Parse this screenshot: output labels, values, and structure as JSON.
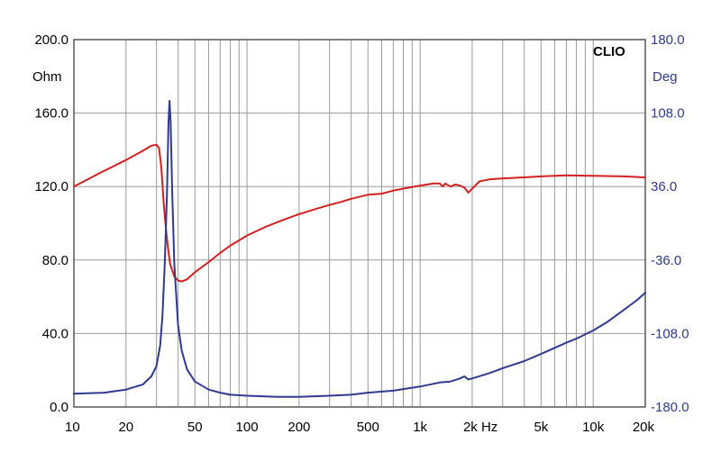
{
  "chart_data": {
    "type": "line",
    "brand": "CLIO",
    "colors": {
      "impedance": "#d42020",
      "phase": "#2f3a8f",
      "grid": "#9a9a9a",
      "frame": "#555555",
      "left_axis_text": "#000000",
      "right_axis_text": "#2f3a8f"
    },
    "grid": true,
    "x_axis": {
      "scale": "log",
      "range": [
        10,
        20000
      ],
      "ticks": [
        {
          "value": 10,
          "label": "10"
        },
        {
          "value": 20,
          "label": "20"
        },
        {
          "value": 50,
          "label": "50"
        },
        {
          "value": 100,
          "label": "100"
        },
        {
          "value": 200,
          "label": "200"
        },
        {
          "value": 500,
          "label": "500"
        },
        {
          "value": 1000,
          "label": "1k"
        },
        {
          "value": 2000,
          "label": "2k Hz"
        },
        {
          "value": 5000,
          "label": "5k"
        },
        {
          "value": 10000,
          "label": "10k"
        },
        {
          "value": 20000,
          "label": "20k"
        }
      ]
    },
    "y_left": {
      "unit": "Ohm",
      "range": [
        0,
        200
      ],
      "ticks": [
        {
          "value": 0,
          "label": "0.0"
        },
        {
          "value": 40,
          "label": "40.0"
        },
        {
          "value": 80,
          "label": "80.0"
        },
        {
          "value": 120,
          "label": "120.0"
        },
        {
          "value": 160,
          "label": "160.0"
        },
        {
          "value": 200,
          "label": "200.0"
        }
      ]
    },
    "y_right": {
      "unit": "Deg",
      "range": [
        -180,
        180
      ],
      "ticks": [
        {
          "value": -180,
          "label": "-180.0"
        },
        {
          "value": -108,
          "label": "-108.0"
        },
        {
          "value": -36,
          "label": "-36.0"
        },
        {
          "value": 36,
          "label": "36.0"
        },
        {
          "value": 108,
          "label": "108.0"
        },
        {
          "value": 180,
          "label": "180.0"
        }
      ]
    },
    "series": [
      {
        "axis": "right",
        "color": "#d42020",
        "points": [
          [
            10,
            36
          ],
          [
            14,
            49
          ],
          [
            20,
            62
          ],
          [
            25,
            71
          ],
          [
            28,
            76
          ],
          [
            30,
            77
          ],
          [
            31,
            74
          ],
          [
            32,
            55
          ],
          [
            33,
            20
          ],
          [
            34,
            -5
          ],
          [
            35,
            -25
          ],
          [
            36,
            -40
          ],
          [
            38,
            -52
          ],
          [
            40,
            -56
          ],
          [
            42,
            -57
          ],
          [
            45,
            -55
          ],
          [
            50,
            -48
          ],
          [
            60,
            -38
          ],
          [
            70,
            -29
          ],
          [
            80,
            -22
          ],
          [
            100,
            -12
          ],
          [
            130,
            -3
          ],
          [
            160,
            3
          ],
          [
            200,
            9
          ],
          [
            250,
            14
          ],
          [
            300,
            18
          ],
          [
            350,
            21
          ],
          [
            400,
            24
          ],
          [
            500,
            28
          ],
          [
            600,
            29
          ],
          [
            700,
            32
          ],
          [
            800,
            34
          ],
          [
            1000,
            37
          ],
          [
            1200,
            39
          ],
          [
            1300,
            39
          ],
          [
            1350,
            36
          ],
          [
            1400,
            39
          ],
          [
            1500,
            36
          ],
          [
            1600,
            38
          ],
          [
            1700,
            37
          ],
          [
            1800,
            35
          ],
          [
            1900,
            30
          ],
          [
            2000,
            34
          ],
          [
            2200,
            41
          ],
          [
            2500,
            43
          ],
          [
            3000,
            44
          ],
          [
            4000,
            45
          ],
          [
            5000,
            46
          ],
          [
            7000,
            47
          ],
          [
            10000,
            46.5
          ],
          [
            15000,
            46
          ],
          [
            20000,
            45
          ]
        ]
      },
      {
        "axis": "right",
        "color": "#2f3a8f",
        "points": [
          [
            10,
            -167
          ],
          [
            15,
            -166
          ],
          [
            20,
            -163
          ],
          [
            25,
            -158
          ],
          [
            28,
            -150
          ],
          [
            30,
            -140
          ],
          [
            31.5,
            -120
          ],
          [
            32.5,
            -90
          ],
          [
            33.5,
            -40
          ],
          [
            34.5,
            30
          ],
          [
            35.2,
            100
          ],
          [
            35.7,
            120
          ],
          [
            36.2,
            100
          ],
          [
            37,
            30
          ],
          [
            38,
            -40
          ],
          [
            40,
            -100
          ],
          [
            42,
            -125
          ],
          [
            45,
            -143
          ],
          [
            50,
            -155
          ],
          [
            60,
            -163
          ],
          [
            70,
            -166
          ],
          [
            80,
            -168
          ],
          [
            100,
            -169
          ],
          [
            150,
            -170
          ],
          [
            200,
            -170
          ],
          [
            300,
            -169
          ],
          [
            400,
            -168
          ],
          [
            500,
            -166
          ],
          [
            700,
            -164
          ],
          [
            1000,
            -160
          ],
          [
            1300,
            -156
          ],
          [
            1500,
            -155
          ],
          [
            1700,
            -152
          ],
          [
            1800,
            -150
          ],
          [
            1900,
            -153
          ],
          [
            2000,
            -152
          ],
          [
            2500,
            -147
          ],
          [
            3000,
            -142
          ],
          [
            4000,
            -135
          ],
          [
            5000,
            -128
          ],
          [
            6000,
            -122
          ],
          [
            7000,
            -117
          ],
          [
            8000,
            -113
          ],
          [
            10000,
            -105
          ],
          [
            12000,
            -97
          ],
          [
            15000,
            -85
          ],
          [
            18000,
            -75
          ],
          [
            20000,
            -68
          ]
        ]
      }
    ]
  }
}
